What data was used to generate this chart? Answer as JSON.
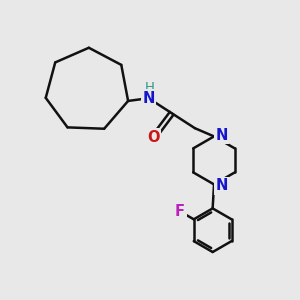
{
  "bg_color": "#e8e8e8",
  "bond_color": "#111111",
  "N_color": "#1515cc",
  "O_color": "#cc1515",
  "F_color": "#bb22bb",
  "H_color": "#2a9a80",
  "lw": 1.8,
  "figsize": [
    3.0,
    3.0
  ],
  "dpi": 100,
  "xlim": [
    -0.5,
    10.5
  ],
  "ylim": [
    -0.5,
    10.5
  ]
}
